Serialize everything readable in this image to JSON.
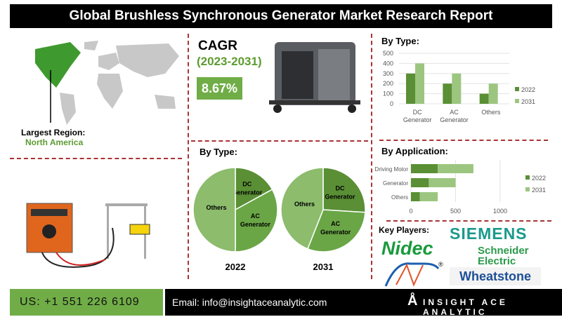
{
  "title": "Global Brushless Synchronous Generator Market Research Report",
  "region": {
    "label": "Largest Region:",
    "value": "North America"
  },
  "cagr": {
    "label": "CAGR",
    "period": "(2023-2031)",
    "value": "8.67%"
  },
  "colors": {
    "dark_green": "#5a8f35",
    "light_green": "#9cc67f",
    "pie_light": "#8cbc6c",
    "accent": "#70ad47",
    "divider": "#aa3333"
  },
  "chart_data": [
    {
      "type": "bar",
      "title": "By Type:",
      "categories": [
        "DC Generator",
        "AC Generator",
        "Others"
      ],
      "series": [
        {
          "name": "2022",
          "values": [
            300,
            200,
            100
          ]
        },
        {
          "name": "2031",
          "values": [
            400,
            300,
            200
          ]
        }
      ],
      "ylim": [
        0,
        500
      ],
      "yticks": [
        0,
        100,
        200,
        300,
        400,
        500
      ],
      "grid": true,
      "legend": "right"
    },
    {
      "type": "pie",
      "title": "By Type:",
      "year": "2022",
      "labels": [
        "DC Generator",
        "AC Generator",
        "Others"
      ],
      "values": [
        17,
        33,
        50
      ]
    },
    {
      "type": "pie",
      "year": "2031",
      "labels": [
        "DC Generator",
        "AC Generator",
        "Others"
      ],
      "values": [
        26,
        30,
        44
      ]
    },
    {
      "type": "bar",
      "orientation": "horizontal",
      "stacked": true,
      "title": "By Application:",
      "categories": [
        "Driving Motor",
        "Generator",
        "Others"
      ],
      "series": [
        {
          "name": "2022",
          "values": [
            300,
            200,
            100
          ]
        },
        {
          "name": "2031",
          "values": [
            400,
            300,
            200
          ]
        }
      ],
      "xlim": [
        0,
        1000
      ],
      "xticks": [
        0,
        500,
        1000
      ],
      "grid": true,
      "legend": "right"
    }
  ],
  "key_players": {
    "label": "Key Players:",
    "logos": [
      "SIEMENS",
      "Nidec",
      "Schneider Electric",
      "Wheatstone"
    ]
  },
  "footer": {
    "phone": "US: +1 551 226 6109",
    "email": "Email: info@insightaceanalytic.com",
    "brand": "INSIGHT ACE ANALYTIC"
  }
}
